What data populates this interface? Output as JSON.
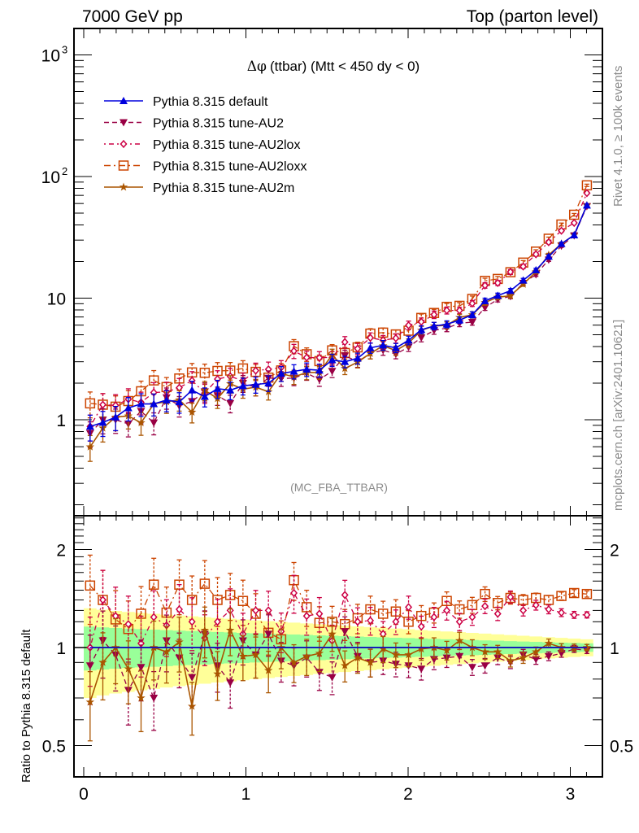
{
  "chart_data": {
    "type": "line",
    "header_left": "7000 GeV pp",
    "header_right": "Top (parton level)",
    "title_prefix": "Δφ",
    "title": "(ttbar) (Mtt < 450 dy < 0)",
    "analysis_label": "(MC_FBA_TTBAR)",
    "side_label_top": "Rivet 4.1.0, ≥ 100k events",
    "side_label_bottom": "mcplots.cern.ch [arXiv:2401.10621]",
    "xlim": [
      -0.06,
      3.2
    ],
    "x_ticks": [
      "0",
      "1",
      "2",
      "3"
    ],
    "main_panel": {
      "yscale": "log",
      "ylim": [
        0.2,
        1800
      ],
      "y_ticks": [
        {
          "value": 1,
          "label": "1"
        },
        {
          "value": 10,
          "label": "10"
        },
        {
          "value": 100,
          "label": "10",
          "sup": "2"
        },
        {
          "value": 1000,
          "label": "10",
          "sup": "3"
        }
      ]
    },
    "ratio_panel": {
      "ylabel": "Ratio to Pythia 8.315 default",
      "yscale": "log",
      "ylim": [
        0.4,
        2.55
      ],
      "y_ticks": [
        {
          "value": 0.5,
          "label": "0.5"
        },
        {
          "value": 1,
          "label": "1"
        },
        {
          "value": 2,
          "label": "2"
        }
      ],
      "band_colors": {
        "yellow": "#ffff99",
        "green": "#99ff99"
      },
      "band_outer_left": [
        0.7,
        1.32
      ],
      "band_outer_right": [
        0.94,
        1.06
      ],
      "band_inner_left": [
        0.85,
        1.16
      ],
      "band_inner_right": [
        0.97,
        1.03
      ]
    },
    "bins": 40,
    "x_max": 3.14159,
    "series": [
      {
        "name": "Pythia 8.315 default",
        "color": "#0000dd",
        "marker": "triangle-up",
        "dash": "solid",
        "values": [
          0.88,
          0.95,
          1.05,
          1.25,
          1.35,
          1.35,
          1.45,
          1.4,
          1.75,
          1.55,
          1.8,
          1.75,
          1.9,
          1.95,
          2.0,
          2.4,
          2.5,
          2.6,
          2.55,
          3.1,
          3.0,
          3.2,
          3.9,
          4.1,
          3.9,
          4.5,
          5.5,
          5.9,
          6.1,
          6.6,
          7.3,
          9.5,
          10.5,
          11.5,
          14,
          17,
          22,
          28,
          33,
          58
        ],
        "ratio": [
          1,
          1,
          1,
          1,
          1,
          1,
          1,
          1,
          1,
          1,
          1,
          1,
          1,
          1,
          1,
          1,
          1,
          1,
          1,
          1,
          1,
          1,
          1,
          1,
          1,
          1,
          1,
          1,
          1,
          1,
          1,
          1,
          1,
          1,
          1,
          1,
          1,
          1,
          1,
          1
        ]
      },
      {
        "name": "Pythia 8.315 tune-AU2",
        "color": "#990044",
        "marker": "triangle-down",
        "dash": "dashed",
        "ratio": [
          0.88,
          1.05,
          0.95,
          0.74,
          0.87,
          0.7,
          1.05,
          0.93,
          0.81,
          1.1,
          0.88,
          0.78,
          1.05,
          0.95,
          1.1,
          0.91,
          0.88,
          0.93,
          0.84,
          0.81,
          1.12,
          0.94,
          0.9,
          0.91,
          0.89,
          0.88,
          0.86,
          0.92,
          0.93,
          0.94,
          0.87,
          0.88,
          0.93,
          0.9,
          0.95,
          0.92,
          0.94,
          0.96,
          0.99,
          0.98
        ]
      },
      {
        "name": "Pythia 8.315 tune-AU2lox",
        "color": "#cc0044",
        "marker": "diamond-open",
        "dash": "dashdot",
        "ratio": [
          1.0,
          1.4,
          1.25,
          1.18,
          1.03,
          1.24,
          1.17,
          1.31,
          1.2,
          1.07,
          1.2,
          1.3,
          1.1,
          1.3,
          1.3,
          1.12,
          1.47,
          1.25,
          1.27,
          1.05,
          1.45,
          1.2,
          1.21,
          1.1,
          1.2,
          1.33,
          1.16,
          1.24,
          1.3,
          1.2,
          1.24,
          1.34,
          1.27,
          1.43,
          1.3,
          1.35,
          1.31,
          1.28,
          1.26,
          1.26
        ]
      },
      {
        "name": "Pythia 8.315 tune-AU2loxx",
        "color": "#cc4400",
        "marker": "square-open",
        "dash": "dashdot2",
        "ratio": [
          1.55,
          1.4,
          1.22,
          1.14,
          1.27,
          1.56,
          1.28,
          1.56,
          1.4,
          1.57,
          1.4,
          1.45,
          1.39,
          1.27,
          1.11,
          1.06,
          1.61,
          1.33,
          1.19,
          1.2,
          1.18,
          1.23,
          1.31,
          1.27,
          1.29,
          1.2,
          1.25,
          1.28,
          1.39,
          1.31,
          1.35,
          1.46,
          1.37,
          1.42,
          1.4,
          1.42,
          1.4,
          1.44,
          1.47,
          1.46
        ]
      },
      {
        "name": "Pythia 8.315 tune-AU2m",
        "color": "#aa5500",
        "marker": "star",
        "dash": "solid",
        "ratio": [
          0.68,
          0.9,
          1.0,
          0.86,
          0.7,
          1.0,
          0.97,
          1.04,
          0.66,
          1.13,
          0.83,
          1.13,
          0.94,
          0.95,
          0.85,
          1.0,
          0.9,
          0.94,
          0.96,
          1.1,
          0.88,
          0.93,
          0.9,
          0.99,
          0.95,
          0.95,
          0.99,
          1.0,
          0.98,
          1.05,
          1.0,
          0.97,
          0.97,
          0.91,
          0.93,
          0.97,
          1.03,
          1.0,
          1.0,
          1.0
        ]
      }
    ]
  }
}
